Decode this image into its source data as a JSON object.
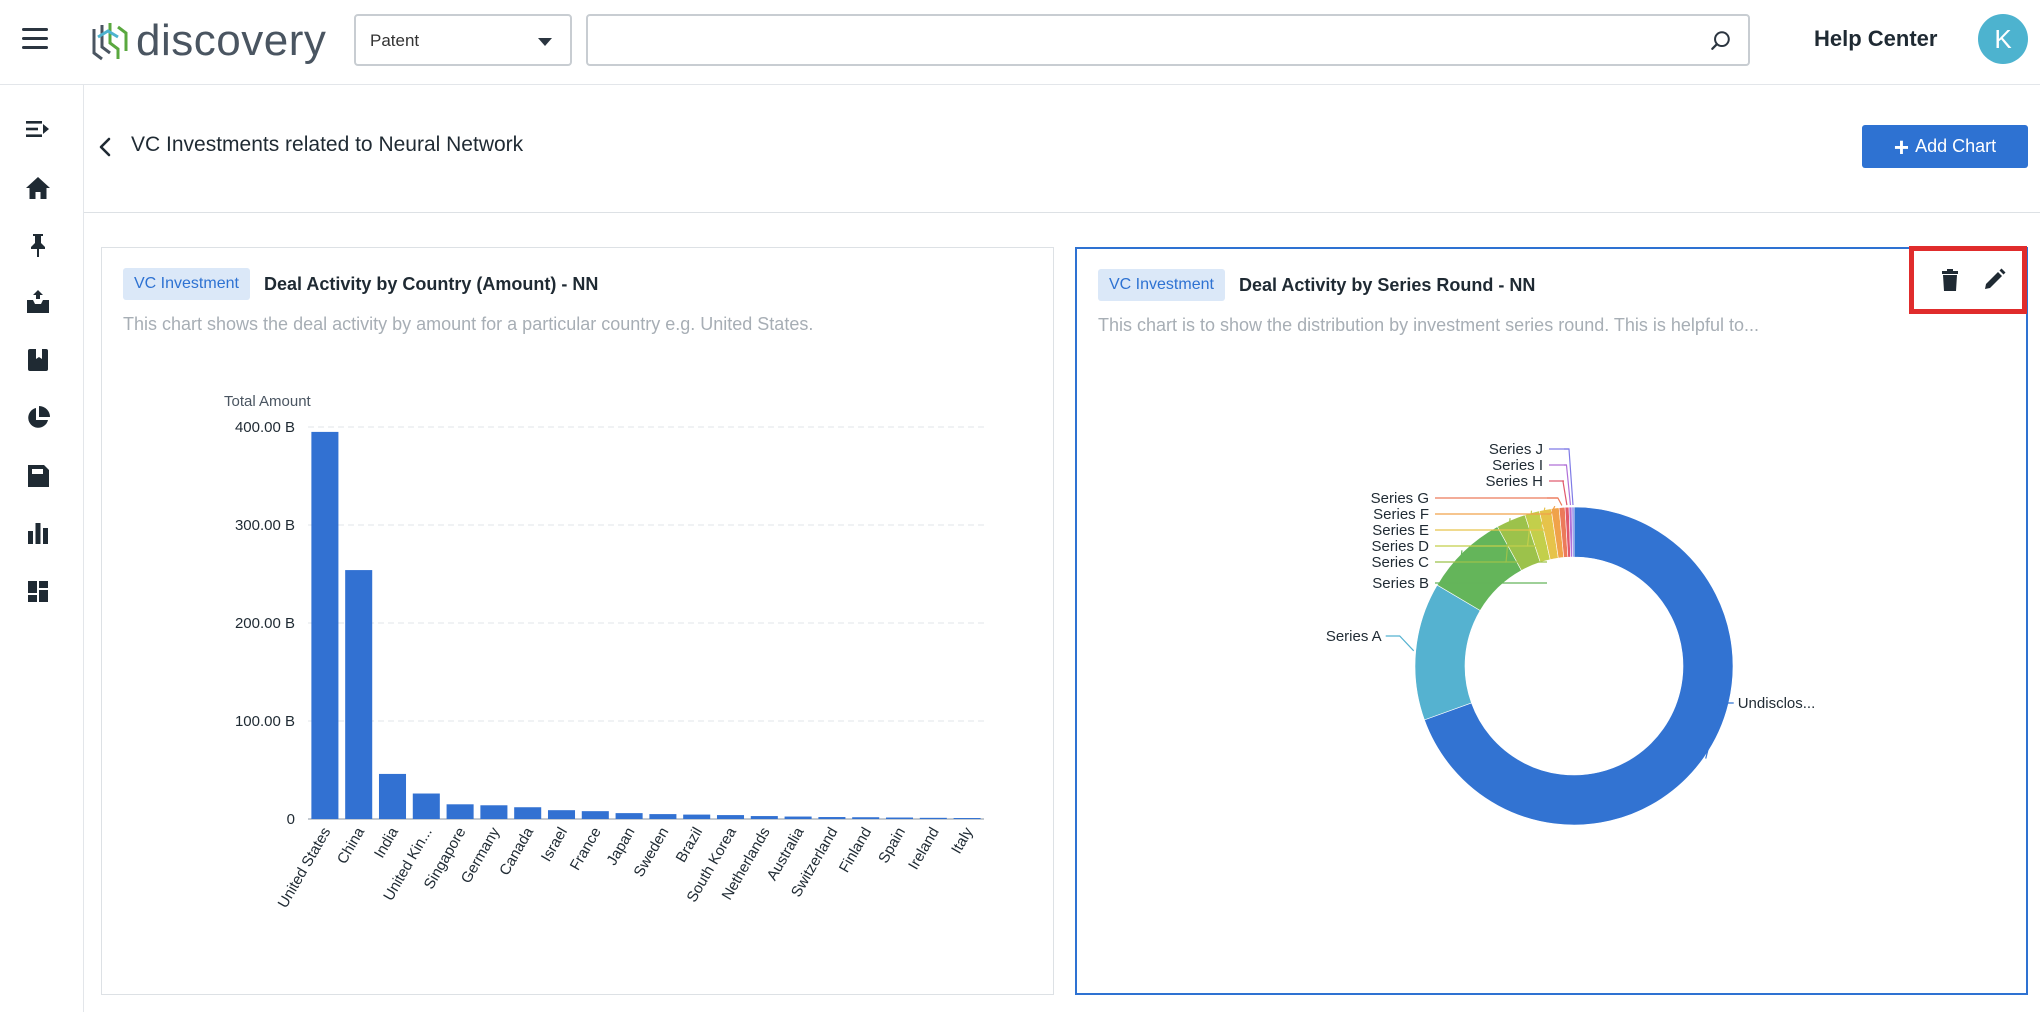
{
  "header": {
    "logo_text": "discovery",
    "dropdown_value": "Patent",
    "search_value": "",
    "help_label": "Help Center",
    "avatar_initial": "K"
  },
  "sidebar": {
    "items": [
      "collapse-icon",
      "home-icon",
      "pin-icon",
      "inbox-icon",
      "book-icon",
      "pie-chart-icon",
      "save-icon",
      "bar-chart-icon",
      "dashboard-icon"
    ]
  },
  "page": {
    "title": "VC Investments related to Neural Network",
    "add_chart_label": "Add Chart"
  },
  "cards": [
    {
      "badge": "VC Investment",
      "title": "Deal Activity by Country (Amount) - NN",
      "description": "This chart shows the deal activity by amount for a particular country e.g. United States."
    },
    {
      "badge": "VC Investment",
      "title": "Deal Activity by Series Round - NN",
      "description": "This chart is to show the distribution by investment series round. This is helpful to..."
    }
  ],
  "colors": {
    "primary": "#2e72d2",
    "highlight": "#e02c2c",
    "badge_bg": "#dbe8f8"
  },
  "chart_data": [
    {
      "type": "bar",
      "ylabel": "Total Amount",
      "ylim": [
        0,
        400
      ],
      "yticks": [
        "0",
        "100.00 B",
        "200.00 B",
        "300.00 B",
        "400.00 B"
      ],
      "grid": true,
      "categories": [
        "United States",
        "China",
        "India",
        "United Kin...",
        "Singapore",
        "Germany",
        "Canada",
        "Israel",
        "France",
        "Japan",
        "Sweden",
        "Brazil",
        "South Korea",
        "Netherlands",
        "Australia",
        "Switzerland",
        "Finland",
        "Spain",
        "Ireland",
        "Italy"
      ],
      "values": [
        395,
        254,
        46,
        26,
        15,
        14,
        12,
        9,
        8,
        6,
        5,
        4.5,
        4,
        3,
        2.5,
        2,
        1.8,
        1.5,
        1.2,
        1
      ],
      "unit": "B",
      "color": "#3271d2"
    },
    {
      "type": "pie",
      "donut": true,
      "labels": [
        "Undisclos...",
        "Series A",
        "Series B",
        "Series C",
        "Series D",
        "Series E",
        "Series F",
        "Series G",
        "Series H",
        "Series I",
        "Series J"
      ],
      "values": [
        69.5,
        14,
        8.5,
        3,
        1.5,
        1.2,
        0.8,
        0.6,
        0.4,
        0.3,
        0.2
      ],
      "colors": [
        "#3273d2",
        "#55b2d0",
        "#64b55a",
        "#9cc24b",
        "#c3cf4b",
        "#e6c34a",
        "#f0a24a",
        "#ec7a5a",
        "#e0586c",
        "#b070d8",
        "#7f7be6"
      ]
    }
  ]
}
